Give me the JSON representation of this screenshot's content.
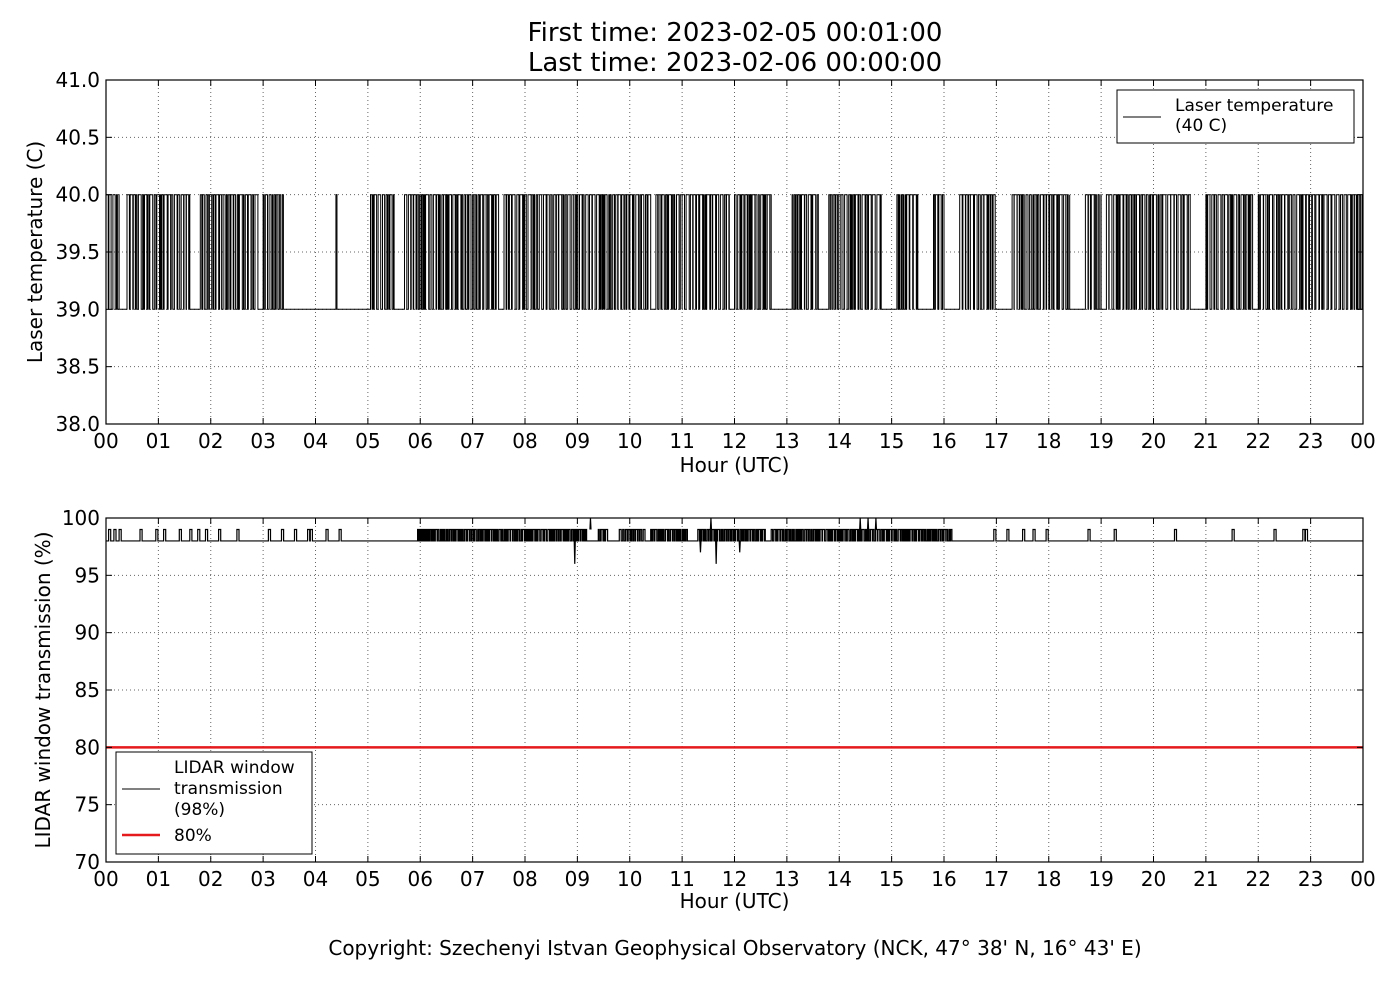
{
  "header": {
    "first_time": "First time: 2023-02-05 00:01:00",
    "last_time": "Last time: 2023-02-06 00:00:00"
  },
  "footer": {
    "copyright": "Copyright: Szechenyi Istvan Geophysical Observatory (NCK, 47° 38' N, 16° 43' E)"
  },
  "chart_data": [
    {
      "type": "line",
      "xlabel": "Hour (UTC)",
      "ylabel": "Laser temperature (C)",
      "xticks": [
        "00",
        "01",
        "02",
        "03",
        "04",
        "05",
        "06",
        "07",
        "08",
        "09",
        "10",
        "11",
        "12",
        "13",
        "14",
        "15",
        "16",
        "17",
        "18",
        "19",
        "20",
        "21",
        "22",
        "23",
        "00"
      ],
      "xlim": [
        0,
        24
      ],
      "ylim": [
        38.0,
        41.0
      ],
      "yticks": [
        "38.0",
        "38.5",
        "39.0",
        "39.5",
        "40.0",
        "40.5",
        "41.0"
      ],
      "grid": true,
      "legend_position": "top-right",
      "series": [
        {
          "name": "Laser temperature\n(40 C)",
          "legend_lines": [
            "Laser temperature",
            "(40 C)"
          ],
          "color": "#000000",
          "levels": [
            39.0,
            40.0
          ],
          "baseline": 39.0,
          "busy_intervals_hours": [
            [
              0.0,
              0.25
            ],
            [
              0.4,
              1.6
            ],
            [
              1.8,
              2.9
            ],
            [
              3.0,
              3.4
            ],
            [
              5.05,
              5.5
            ],
            [
              5.7,
              7.0
            ],
            [
              7.0,
              7.5
            ],
            [
              7.6,
              8.6
            ],
            [
              8.6,
              9.5
            ],
            [
              9.5,
              10.4
            ],
            [
              10.5,
              11.0
            ],
            [
              11.0,
              11.9
            ],
            [
              12.0,
              12.7
            ],
            [
              13.1,
              13.6
            ],
            [
              13.8,
              14.8
            ],
            [
              15.1,
              15.5
            ],
            [
              15.8,
              16.0
            ],
            [
              16.3,
              17.0
            ],
            [
              17.3,
              18.4
            ],
            [
              18.7,
              19.0
            ],
            [
              19.1,
              20.0
            ],
            [
              20.0,
              20.7
            ],
            [
              21.0,
              21.9
            ],
            [
              22.0,
              22.6
            ],
            [
              22.6,
              24.0
            ]
          ],
          "isolated_spikes_hours": [
            4.4
          ],
          "note_dense": "alternates between 39.0 and 40.0"
        }
      ]
    },
    {
      "type": "line",
      "xlabel": "Hour (UTC)",
      "ylabel": "LIDAR window transmission (%)",
      "xticks": [
        "00",
        "01",
        "02",
        "03",
        "04",
        "05",
        "06",
        "07",
        "08",
        "09",
        "10",
        "11",
        "12",
        "13",
        "14",
        "15",
        "16",
        "17",
        "18",
        "19",
        "20",
        "21",
        "22",
        "23",
        "00"
      ],
      "xlim": [
        0,
        24
      ],
      "ylim": [
        70,
        100
      ],
      "yticks": [
        "70",
        "75",
        "80",
        "85",
        "90",
        "95",
        "100"
      ],
      "grid": true,
      "legend_position": "bottom-left",
      "series": [
        {
          "name": "LIDAR window\ntransmission\n(98%)",
          "legend_lines": [
            "LIDAR window",
            "transmission",
            "(98%)"
          ],
          "color": "#000000",
          "baseline": 98,
          "upper_level": 99,
          "sparse_spikes_hours": [
            0.05,
            0.15,
            0.25,
            0.65,
            0.95,
            1.1,
            1.4,
            1.6,
            1.75,
            1.9,
            2.15,
            2.5,
            3.1,
            3.35,
            3.6,
            3.85,
            3.9,
            4.2,
            4.45,
            16.95,
            17.2,
            17.5,
            17.7,
            17.95,
            18.75,
            19.25,
            20.4,
            21.5,
            22.3,
            22.85,
            22.9
          ],
          "busy_intervals_hours": [
            [
              5.95,
              9.2
            ],
            [
              9.4,
              9.6
            ],
            [
              9.8,
              10.3
            ],
            [
              10.4,
              11.1
            ],
            [
              11.3,
              12.6
            ],
            [
              12.7,
              16.15
            ]
          ],
          "dips": [
            {
              "x": 8.95,
              "y": 96
            },
            {
              "x": 11.35,
              "y": 97
            },
            {
              "x": 11.65,
              "y": 96
            },
            {
              "x": 12.1,
              "y": 97
            }
          ],
          "peaks_to_100_hours": [
            9.25,
            11.55,
            14.4,
            14.55,
            14.7
          ]
        },
        {
          "name": "80%",
          "color": "#e41a1c",
          "constant": 80
        }
      ]
    }
  ]
}
